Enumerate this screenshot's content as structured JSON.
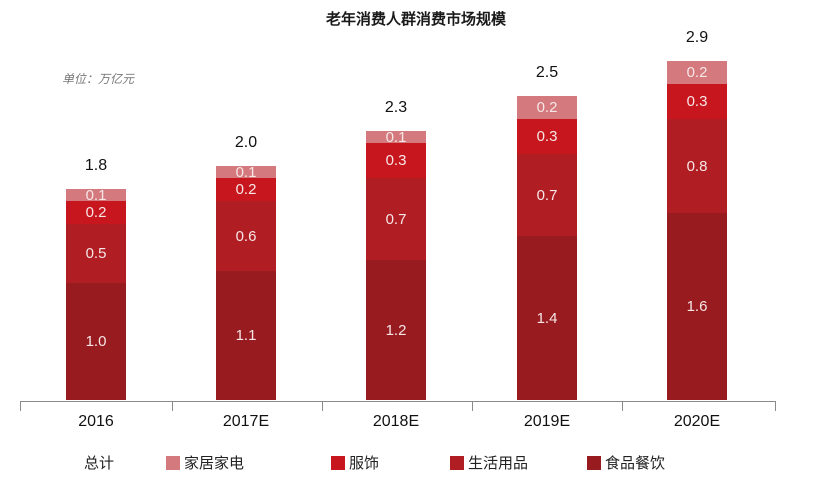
{
  "title": "老年消费人群消费市场规模",
  "unit_label": "单位：万亿元",
  "legend": {
    "total_label": "总计",
    "items": [
      {
        "name": "家居家电",
        "color": "#d4797d"
      },
      {
        "name": "服饰",
        "color": "#c8161e"
      },
      {
        "name": "生活用品",
        "color": "#b01d23"
      },
      {
        "name": "食品餐饮",
        "color": "#981b20"
      }
    ]
  },
  "chart_data": {
    "type": "bar",
    "stacked": true,
    "title": "老年消费人群消费市场规模",
    "subtitle": "单位：万亿元",
    "xlabel": "",
    "ylabel": "",
    "categories": [
      "2016",
      "2017E",
      "2018E",
      "2019E",
      "2020E"
    ],
    "series": [
      {
        "name": "食品餐饮",
        "color": "#981b20",
        "values": [
          1.0,
          1.1,
          1.2,
          1.4,
          1.6
        ]
      },
      {
        "name": "生活用品",
        "color": "#b01d23",
        "values": [
          0.5,
          0.6,
          0.7,
          0.7,
          0.8
        ]
      },
      {
        "name": "服饰",
        "color": "#c8161e",
        "values": [
          0.2,
          0.2,
          0.3,
          0.3,
          0.3
        ]
      },
      {
        "name": "家居家电",
        "color": "#d4797d",
        "values": [
          0.1,
          0.1,
          0.1,
          0.2,
          0.2
        ]
      }
    ],
    "totals": [
      1.8,
      2.0,
      2.3,
      2.5,
      2.9
    ],
    "total_label": "总计",
    "grid": false,
    "legend_position": "bottom"
  },
  "bars": [
    {
      "category": "2016",
      "total": "1.8",
      "segments": [
        {
          "label": "1.0",
          "value": 1.0,
          "color": "#981b20"
        },
        {
          "label": "0.5",
          "value": 0.5,
          "color": "#b01d23"
        },
        {
          "label": "0.2",
          "value": 0.2,
          "color": "#c8161e"
        },
        {
          "label": "0.1",
          "value": 0.1,
          "color": "#d4797d"
        }
      ]
    },
    {
      "category": "2017E",
      "total": "2.0",
      "segments": [
        {
          "label": "1.1",
          "value": 1.1,
          "color": "#981b20"
        },
        {
          "label": "0.6",
          "value": 0.6,
          "color": "#b01d23"
        },
        {
          "label": "0.2",
          "value": 0.2,
          "color": "#c8161e"
        },
        {
          "label": "0.1",
          "value": 0.1,
          "color": "#d4797d"
        }
      ]
    },
    {
      "category": "2018E",
      "total": "2.3",
      "segments": [
        {
          "label": "1.2",
          "value": 1.2,
          "color": "#981b20"
        },
        {
          "label": "0.7",
          "value": 0.7,
          "color": "#b01d23"
        },
        {
          "label": "0.3",
          "value": 0.3,
          "color": "#c8161e"
        },
        {
          "label": "0.1",
          "value": 0.1,
          "color": "#d4797d"
        }
      ]
    },
    {
      "category": "2019E",
      "total": "2.5",
      "segments": [
        {
          "label": "1.4",
          "value": 1.4,
          "color": "#981b20"
        },
        {
          "label": "0.7",
          "value": 0.7,
          "color": "#b01d23"
        },
        {
          "label": "0.3",
          "value": 0.3,
          "color": "#c8161e"
        },
        {
          "label": "0.2",
          "value": 0.2,
          "color": "#d4797d"
        }
      ]
    },
    {
      "category": "2020E",
      "total": "2.9",
      "segments": [
        {
          "label": "1.6",
          "value": 1.6,
          "color": "#981b20"
        },
        {
          "label": "0.8",
          "value": 0.8,
          "color": "#b01d23"
        },
        {
          "label": "0.3",
          "value": 0.3,
          "color": "#c8161e"
        },
        {
          "label": "0.2",
          "value": 0.2,
          "color": "#d4797d"
        }
      ]
    }
  ]
}
